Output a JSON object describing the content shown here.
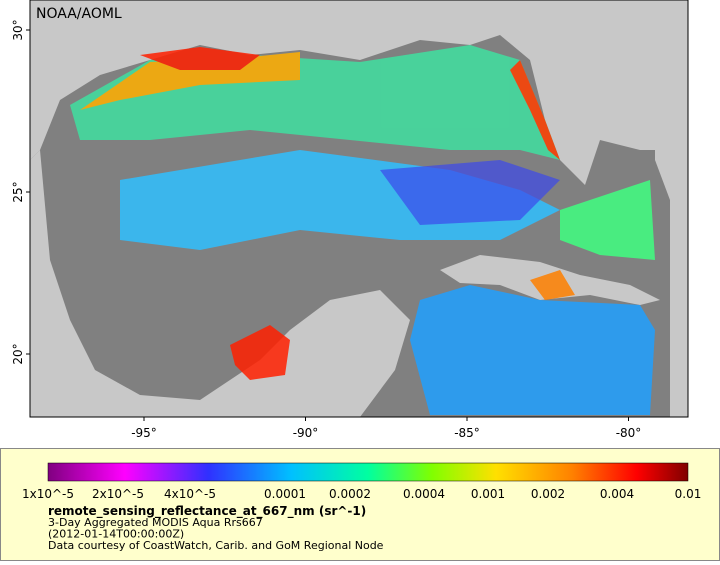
{
  "map": {
    "attribution": "NOAA/AOML",
    "lon_ticks": [
      "-95°",
      "-90°",
      "-85°",
      "-80°"
    ],
    "lat_ticks": [
      "30°",
      "25°",
      "20°"
    ]
  },
  "colorbar": {
    "labels": [
      "1x10^-5",
      "2x10^-5",
      "4x10^-5",
      "0.0001",
      "0.0002",
      "0.0004",
      "0.001",
      "0.002",
      "0.004",
      "0.01"
    ]
  },
  "legend": {
    "variable": "remote_sensing_reflectance_at_667_nm (sr^-1)",
    "lines": [
      "3-Day Aggregated MODIS Aqua Rrs667",
      "(2012-01-14T00:00:00Z)",
      "Data courtesy of CoastWatch, Carib. and GoM Regional Node"
    ]
  }
}
